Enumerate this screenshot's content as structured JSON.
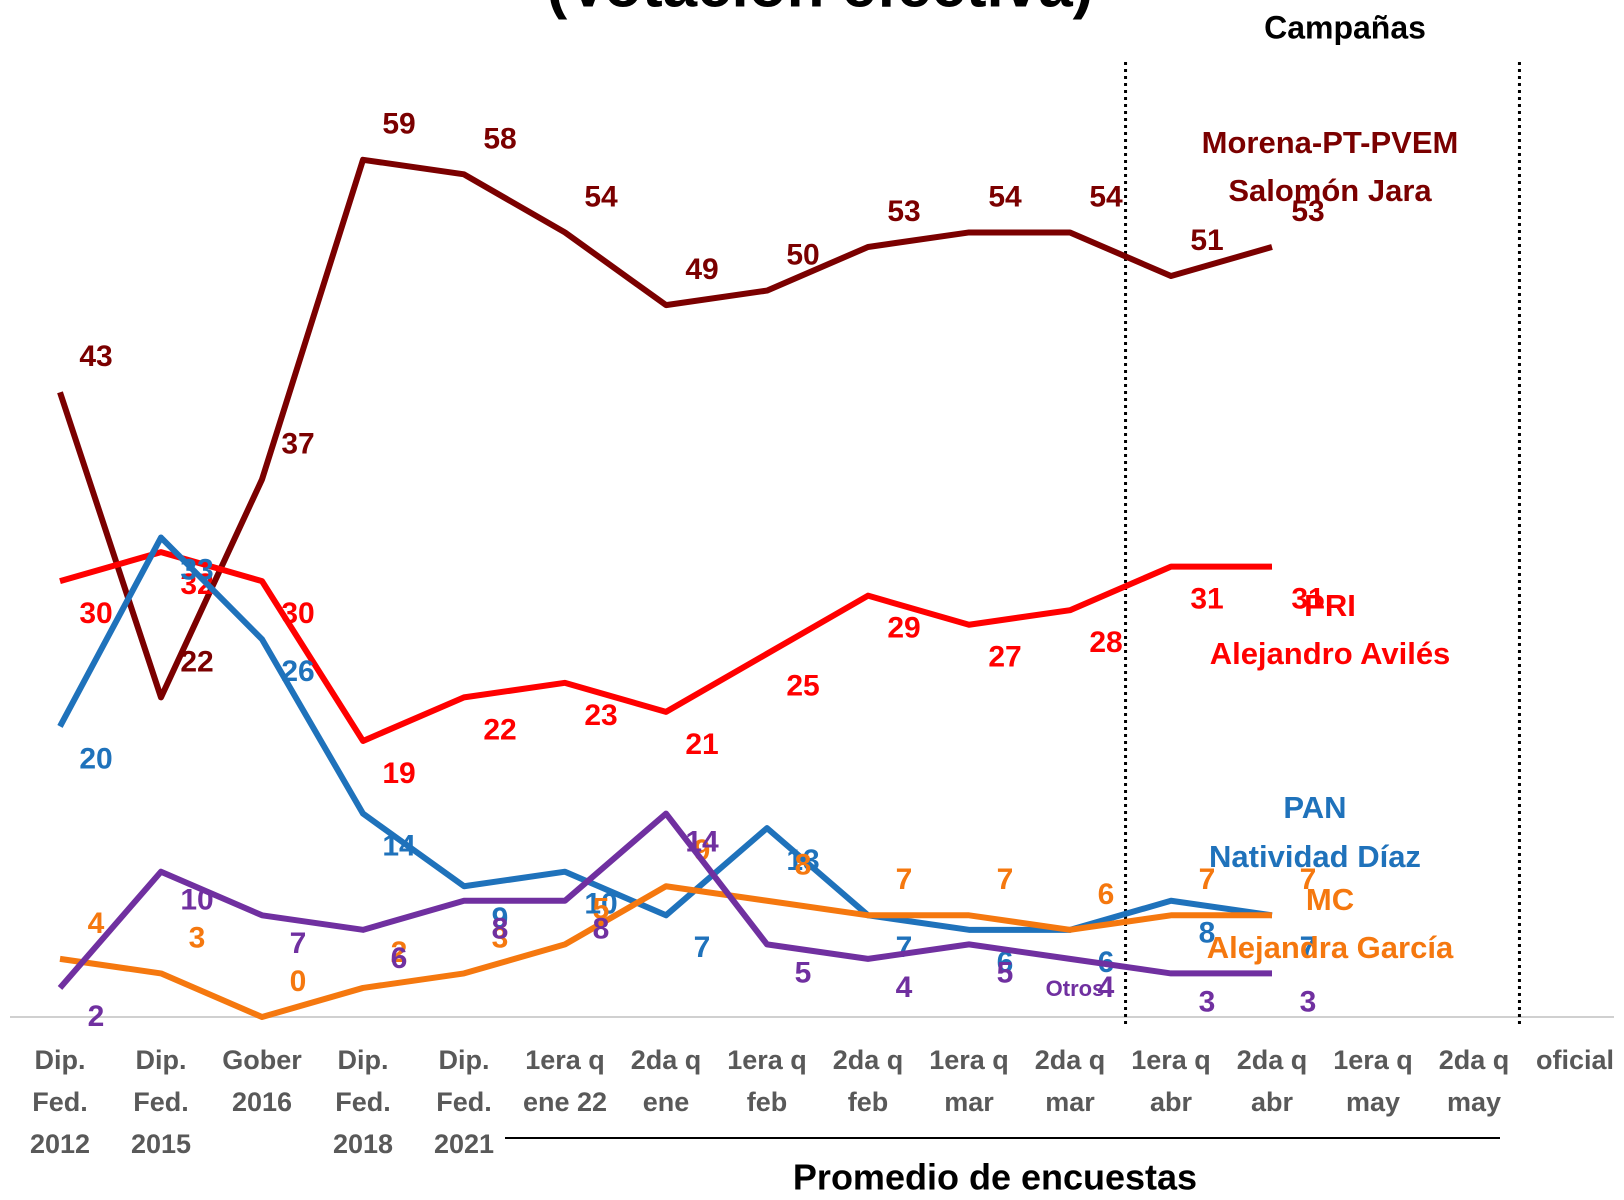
{
  "chart_data": {
    "type": "line",
    "title": "(Votación efectiva)",
    "campaign_label": "Campañas",
    "bracket_label": "Promedio de encuestas",
    "categories": [
      [
        "Dip.",
        "Fed.",
        "2012"
      ],
      [
        "Dip.",
        "Fed.",
        "2015"
      ],
      [
        "Gober",
        "2016"
      ],
      [
        "Dip.",
        "Fed.",
        "2018"
      ],
      [
        "Dip.",
        "Fed.",
        "2021"
      ],
      [
        "1era q",
        "ene 22"
      ],
      [
        "2da q",
        "ene"
      ],
      [
        "1era q",
        "feb"
      ],
      [
        "2da q",
        "feb"
      ],
      [
        "1era q",
        "mar"
      ],
      [
        "2da q",
        "mar"
      ],
      [
        "1era q",
        "abr"
      ],
      [
        "2da q",
        "abr"
      ],
      [
        "1era q",
        "may"
      ],
      [
        "2da q",
        "may"
      ],
      [
        "oficial"
      ]
    ],
    "ylim": [
      0,
      70
    ],
    "grid": false,
    "series": [
      {
        "name": "Morena-PT-PVEM",
        "candidate": "Salomón Jara",
        "color": "#7b0000",
        "values": [
          43,
          22,
          37,
          59,
          58,
          54,
          49,
          50,
          53,
          54,
          54,
          51,
          53,
          null,
          null,
          null
        ]
      },
      {
        "name": "PRI",
        "candidate": "Alejandro Avilés",
        "color": "#ff0000",
        "values": [
          30,
          32,
          30,
          19,
          22,
          23,
          21,
          25,
          29,
          27,
          28,
          31,
          31,
          null,
          null,
          null
        ]
      },
      {
        "name": "PAN",
        "candidate": "Natividad Díaz",
        "color": "#1f72bb",
        "values": [
          20,
          33,
          26,
          14,
          9,
          10,
          7,
          13,
          7,
          6,
          6,
          8,
          7,
          null,
          null,
          null
        ]
      },
      {
        "name": "MC",
        "candidate": "Alejandra García",
        "color": "#f5780f",
        "values": [
          4,
          3,
          0,
          2,
          3,
          5,
          9,
          8,
          7,
          7,
          6,
          7,
          7,
          null,
          null,
          null
        ]
      },
      {
        "name": "Otros",
        "color": "#7030a0",
        "values": [
          2,
          10,
          7,
          6,
          8,
          8,
          14,
          5,
          4,
          5,
          4,
          3,
          3,
          null,
          null,
          null
        ]
      }
    ]
  }
}
